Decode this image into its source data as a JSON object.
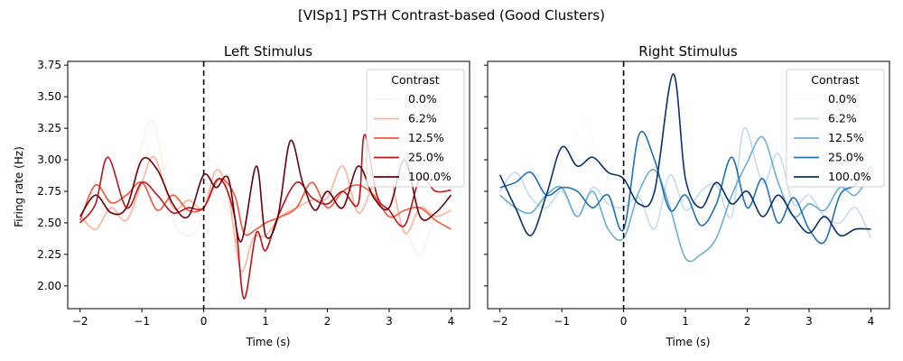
{
  "figure_title": "[VISp1] PSTH Contrast-based (Good Clusters)",
  "chart_data": [
    {
      "type": "line",
      "title": "Left Stimulus",
      "xlabel": "Time (s)",
      "ylabel": "Firing rate (Hz)",
      "xlim": [
        -2.2,
        4.3
      ],
      "ylim": [
        1.82,
        3.78
      ],
      "xticks": [
        -2,
        -1,
        0,
        1,
        2,
        3,
        4
      ],
      "yticks": [
        2.0,
        2.25,
        2.5,
        2.75,
        3.0,
        3.25,
        3.5,
        3.75
      ],
      "ytick_labels": [
        "2.00",
        "2.25",
        "2.50",
        "2.75",
        "3.00",
        "3.25",
        "3.50",
        "3.75"
      ],
      "grid": false,
      "vline": {
        "x": 0,
        "style": "dashed",
        "color": "#000000"
      },
      "legend": {
        "title": "Contrast",
        "position": "top-right"
      },
      "series": [
        {
          "name": "0.0%",
          "color": "#fff0e9",
          "x": [
            -2,
            -1.75,
            -1.5,
            -1.25,
            -1,
            -0.8,
            -0.5,
            -0.3,
            -0.1,
            0,
            0.2,
            0.4,
            0.6,
            0.8,
            1.0,
            1.25,
            1.5,
            1.75,
            2.0,
            2.25,
            2.5,
            2.75,
            3.0,
            3.25,
            3.5,
            3.75,
            4.0
          ],
          "y": [
            2.52,
            2.62,
            2.58,
            2.64,
            3.12,
            3.28,
            2.55,
            2.4,
            2.45,
            2.62,
            2.72,
            2.58,
            2.3,
            2.52,
            2.62,
            2.55,
            2.68,
            2.75,
            2.72,
            2.6,
            2.78,
            2.7,
            2.55,
            2.45,
            2.25,
            2.55,
            2.62
          ]
        },
        {
          "name": "6.2%",
          "color": "#fcb499",
          "x": [
            -2,
            -1.75,
            -1.5,
            -1.25,
            -1,
            -0.8,
            -0.5,
            -0.25,
            0,
            0.2,
            0.4,
            0.6,
            0.8,
            1.0,
            1.25,
            1.5,
            1.75,
            2.0,
            2.25,
            2.5,
            2.75,
            3.0,
            3.25,
            3.5,
            3.75,
            4.0
          ],
          "y": [
            2.56,
            2.45,
            2.62,
            2.52,
            2.82,
            3.02,
            2.62,
            2.68,
            2.62,
            2.92,
            2.72,
            2.12,
            2.38,
            2.4,
            2.55,
            2.62,
            2.68,
            2.7,
            2.95,
            2.58,
            2.8,
            2.88,
            2.42,
            2.62,
            2.55,
            2.6
          ]
        },
        {
          "name": "12.5%",
          "color": "#f6553d",
          "x": [
            -2,
            -1.75,
            -1.5,
            -1.25,
            -1,
            -0.75,
            -0.5,
            -0.25,
            0,
            0.25,
            0.5,
            0.65,
            0.85,
            1.0,
            1.25,
            1.5,
            1.75,
            2.0,
            2.25,
            2.5,
            2.75,
            3.0,
            3.25,
            3.5,
            3.75,
            4.0
          ],
          "y": [
            2.52,
            2.8,
            2.66,
            2.72,
            2.82,
            2.6,
            2.72,
            2.6,
            2.62,
            2.85,
            2.72,
            2.42,
            2.45,
            2.5,
            2.55,
            2.62,
            2.82,
            2.62,
            2.75,
            2.8,
            2.72,
            2.55,
            2.6,
            2.62,
            2.52,
            2.45
          ]
        },
        {
          "name": "25.0%",
          "color": "#bb151a",
          "x": [
            -2,
            -1.75,
            -1.55,
            -1.25,
            -1,
            -0.75,
            -0.5,
            -0.25,
            0,
            0.25,
            0.5,
            0.65,
            0.85,
            1.0,
            1.2,
            1.5,
            1.75,
            2.0,
            2.25,
            2.5,
            2.6,
            2.8,
            3.0,
            3.25,
            3.5,
            3.75,
            4.0
          ],
          "y": [
            2.5,
            2.65,
            3.02,
            2.62,
            2.82,
            2.72,
            2.58,
            2.62,
            2.62,
            2.85,
            2.55,
            1.9,
            2.42,
            2.28,
            2.55,
            2.82,
            2.7,
            2.65,
            2.75,
            2.65,
            3.2,
            2.72,
            2.6,
            2.48,
            2.85,
            2.75,
            2.76
          ]
        },
        {
          "name": "100.0%",
          "color": "#67000d",
          "x": [
            -2,
            -1.75,
            -1.5,
            -1.25,
            -1,
            -0.75,
            -0.5,
            -0.25,
            0,
            0.2,
            0.4,
            0.6,
            0.85,
            1.0,
            1.2,
            1.4,
            1.6,
            1.8,
            2.0,
            2.25,
            2.5,
            2.75,
            3.0,
            3.25,
            3.5,
            3.75,
            4.0
          ],
          "y": [
            2.55,
            2.72,
            2.58,
            2.62,
            3.0,
            2.92,
            2.65,
            2.55,
            2.88,
            2.78,
            2.85,
            2.35,
            2.95,
            2.4,
            2.55,
            3.15,
            2.82,
            2.6,
            2.75,
            2.62,
            2.95,
            2.7,
            2.62,
            3.0,
            2.55,
            2.58,
            2.72
          ]
        }
      ]
    },
    {
      "type": "line",
      "title": "Right Stimulus",
      "xlabel": "Time (s)",
      "ylabel": "",
      "xlim": [
        -2.2,
        4.3
      ],
      "ylim": [
        1.82,
        3.78
      ],
      "xticks": [
        -2,
        -1,
        0,
        1,
        2,
        3,
        4
      ],
      "yticks": [
        2.0,
        2.25,
        2.5,
        2.75,
        3.0,
        3.25,
        3.5,
        3.75
      ],
      "ytick_labels": [],
      "grid": false,
      "vline": {
        "x": 0,
        "style": "dashed",
        "color": "#000000"
      },
      "legend": {
        "title": "Contrast",
        "position": "top-right"
      },
      "series": [
        {
          "name": "0.0%",
          "color": "#f7fbff",
          "x": [
            -2,
            -1.75,
            -1.5,
            -1.25,
            -1,
            -0.6,
            -0.3,
            0,
            0.3,
            0.6,
            1.0,
            1.3,
            1.6,
            2.0,
            2.3,
            2.6,
            3.0,
            3.3,
            3.6,
            4.0
          ],
          "y": [
            2.75,
            2.62,
            2.55,
            2.78,
            2.88,
            3.32,
            2.62,
            2.72,
            2.82,
            2.7,
            2.55,
            2.6,
            2.72,
            2.68,
            2.75,
            2.62,
            2.6,
            2.55,
            2.58,
            2.55
          ]
        },
        {
          "name": "6.2%",
          "color": "#c6dbef",
          "x": [
            -2,
            -1.75,
            -1.5,
            -1.25,
            -1,
            -0.75,
            -0.5,
            -0.25,
            0,
            0.25,
            0.5,
            0.75,
            1.0,
            1.25,
            1.5,
            1.75,
            1.95,
            2.25,
            2.5,
            2.75,
            3.0,
            3.25,
            3.5,
            3.75,
            4.0
          ],
          "y": [
            2.75,
            2.9,
            2.7,
            2.62,
            2.75,
            2.55,
            2.78,
            2.65,
            2.62,
            2.7,
            2.45,
            2.88,
            2.6,
            2.75,
            2.8,
            2.55,
            3.25,
            2.82,
            3.05,
            2.65,
            2.72,
            2.55,
            2.5,
            2.62,
            2.38
          ]
        },
        {
          "name": "12.5%",
          "color": "#6baed6",
          "x": [
            -2,
            -1.75,
            -1.5,
            -1.25,
            -1,
            -0.75,
            -0.5,
            -0.25,
            0,
            0.25,
            0.5,
            0.75,
            1.0,
            1.25,
            1.5,
            1.75,
            2.0,
            2.25,
            2.5,
            2.75,
            3.0,
            3.25,
            3.5,
            3.75,
            4.0
          ],
          "y": [
            2.72,
            2.62,
            2.58,
            2.72,
            2.78,
            2.55,
            2.75,
            2.45,
            2.38,
            2.75,
            2.92,
            2.62,
            2.22,
            2.25,
            2.38,
            2.72,
            2.98,
            3.18,
            2.82,
            2.55,
            2.65,
            2.6,
            2.78,
            2.72,
            2.9
          ]
        },
        {
          "name": "25.0%",
          "color": "#2171b5",
          "x": [
            -2,
            -1.75,
            -1.5,
            -1.25,
            -1,
            -0.75,
            -0.5,
            -0.25,
            0,
            0.25,
            0.5,
            0.75,
            1.0,
            1.25,
            1.5,
            1.75,
            2.0,
            2.25,
            2.5,
            2.75,
            3.0,
            3.25,
            3.5,
            3.75,
            4.0
          ],
          "y": [
            2.78,
            2.82,
            2.9,
            2.72,
            2.78,
            2.75,
            2.62,
            2.72,
            2.45,
            3.2,
            3.0,
            2.6,
            2.72,
            2.48,
            2.65,
            3.02,
            2.62,
            2.85,
            2.5,
            2.7,
            2.45,
            2.35,
            2.72,
            2.8,
            2.95
          ]
        },
        {
          "name": "100.0%",
          "color": "#08306b",
          "x": [
            -2,
            -1.75,
            -1.5,
            -1.25,
            -1,
            -0.75,
            -0.5,
            -0.25,
            0,
            0.25,
            0.5,
            0.8,
            1.0,
            1.25,
            1.5,
            1.75,
            2.0,
            2.25,
            2.5,
            2.75,
            3.0,
            3.25,
            3.5,
            3.75,
            4.0
          ],
          "y": [
            2.88,
            2.62,
            2.4,
            2.72,
            3.1,
            2.95,
            3.02,
            2.9,
            2.85,
            2.65,
            2.75,
            3.68,
            2.85,
            2.62,
            2.82,
            2.65,
            2.75,
            2.55,
            2.72,
            2.55,
            2.42,
            2.55,
            2.4,
            2.45,
            2.45
          ]
        }
      ]
    }
  ]
}
